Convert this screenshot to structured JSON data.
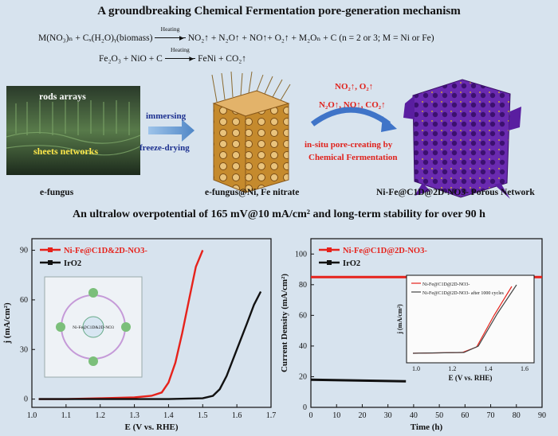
{
  "header": {
    "title": "A groundbreaking Chemical Fermentation pore-generation mechanism",
    "eq1_lhs": "M(NO₃)ₙ + Cₓ(H₂O)ᵧ(biomass)",
    "eq1_cond": "Heating",
    "eq1_rhs": "NO₂↑ + N₂O↑ + NO↑+ O₂↑ + M₂Oₙ + C",
    "eq1_note": "(n = 2 or 3; M = Ni or Fe)",
    "eq2_lhs": "Fe₂O₃ + NiO + C",
    "eq2_cond": "Heating",
    "eq2_rhs": "FeNi + CO₂↑"
  },
  "scheme": {
    "img1_label_top": "rods arrays",
    "img1_label_bottom": "sheets networks",
    "step1_top": "immersing",
    "step1_bottom": "freeze-drying",
    "gases_line1": "NO₂↑, O₂↑",
    "gases_line2": "N₂O↑, NO↑, CO₂↑",
    "step2_line1": "in-situ pore-creating by",
    "step2_line2": "Chemical Fermentation",
    "caption1": "e-fungus",
    "caption2": "e-fungus@Ni, Fe nitrate",
    "caption3": "Ni-Fe@C1D@2D-NO3- Porous Network"
  },
  "headline2": "An ultralow overpotential of 165 mV@10 mA/cm² and long-term stability for over 90 h",
  "chart_data": [
    {
      "type": "line",
      "title": "",
      "xlabel": "E (V vs. RHE)",
      "ylabel": "j (mA/cm²)",
      "xlim": [
        1.0,
        1.7
      ],
      "ylim": [
        -5,
        97
      ],
      "xticks": [
        "1.0",
        "1.1",
        "1.2",
        "1.3",
        "1.4",
        "1.5",
        "1.6",
        "1.7"
      ],
      "yticks": [
        "0",
        "30",
        "60",
        "90"
      ],
      "legend": [
        "Ni-Fe@C1D&2D-NO3-",
        "IrO2"
      ],
      "series": [
        {
          "name": "Ni-Fe@C1D&2D-NO3-",
          "color": "#e6221b",
          "x": [
            1.02,
            1.1,
            1.2,
            1.3,
            1.35,
            1.38,
            1.4,
            1.42,
            1.44,
            1.46,
            1.48,
            1.5
          ],
          "y": [
            0,
            0,
            0.5,
            1,
            2,
            4,
            10,
            22,
            40,
            60,
            80,
            90
          ]
        },
        {
          "name": "IrO2",
          "color": "#111111",
          "x": [
            1.02,
            1.2,
            1.4,
            1.5,
            1.53,
            1.55,
            1.57,
            1.6,
            1.63,
            1.65,
            1.67
          ],
          "y": [
            0,
            0,
            0,
            0.5,
            2,
            6,
            14,
            30,
            46,
            57,
            65
          ]
        }
      ],
      "inset_labels": [
        "Ni-Fe@C1D&2D-NO3"
      ]
    },
    {
      "type": "line",
      "title": "",
      "xlabel": "Time (h)",
      "ylabel": "Current Density (mA/cm²)",
      "xlim": [
        0,
        90
      ],
      "ylim": [
        0,
        110
      ],
      "xticks": [
        "0",
        "10",
        "20",
        "30",
        "40",
        "50",
        "60",
        "70",
        "80",
        "90"
      ],
      "yticks": [
        "0",
        "20",
        "40",
        "60",
        "80",
        "100"
      ],
      "legend": [
        "Ni-Fe@C1D@2D-NO3-",
        "IrO2"
      ],
      "series": [
        {
          "name": "Ni-Fe@C1D@2D-NO3-",
          "color": "#e6221b",
          "x": [
            0,
            90
          ],
          "y": [
            85,
            85
          ]
        },
        {
          "name": "IrO2",
          "color": "#111111",
          "x": [
            0,
            37
          ],
          "y": [
            18,
            17
          ]
        }
      ],
      "inset": {
        "xlabel": "E (V vs. RHE)",
        "ylabel": "j (mA/cm²)",
        "xticks": [
          "1.0",
          "1.2",
          "1.4",
          "1.6"
        ],
        "legend": [
          "Ni-Fe@C1D@2D-NO3-",
          "Ni-Fe@C1D@2D-NO3- after 1000 cycles"
        ]
      }
    }
  ]
}
